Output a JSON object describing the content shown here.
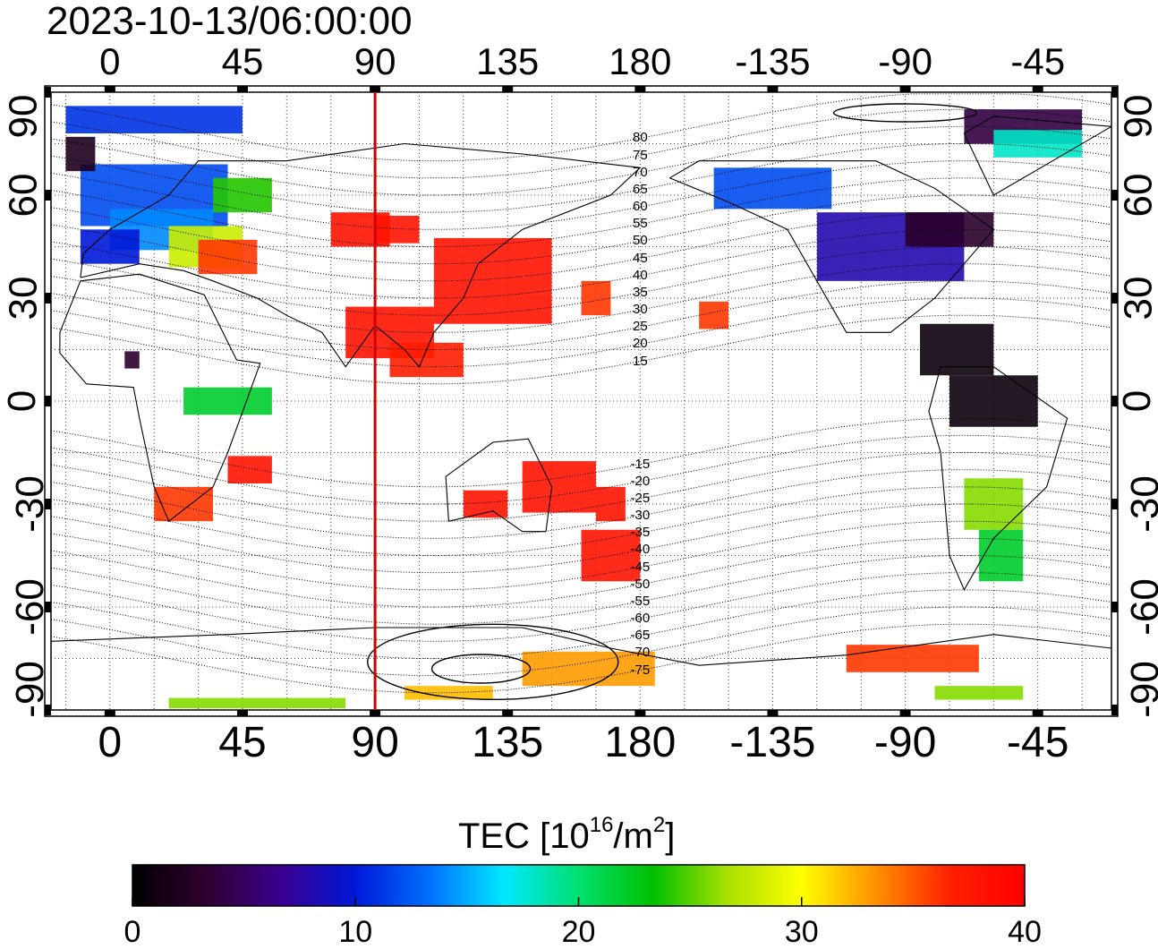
{
  "title": "2023-10-13/06:00:00",
  "x_ticks_top": [
    "0",
    "45",
    "90",
    "135",
    "180",
    "-135",
    "-90",
    "-45"
  ],
  "x_ticks_bottom": [
    "0",
    "45",
    "90",
    "135",
    "180",
    "-135",
    "-90",
    "-45"
  ],
  "y_ticks_left": [
    "90",
    "60",
    "30",
    "0",
    "-30",
    "-60",
    "-90"
  ],
  "y_ticks_right": [
    "90",
    "60",
    "30",
    "0",
    "-30",
    "-60",
    "-90"
  ],
  "mlat_labels": [
    "80",
    "75",
    "70",
    "65",
    "60",
    "55",
    "50",
    "45",
    "40",
    "35",
    "30",
    "25",
    "20",
    "15",
    "-15",
    "-20",
    "-25",
    "-30",
    "-35",
    "-40",
    "-45",
    "-50",
    "-55",
    "-60",
    "-65",
    "-70",
    "-75"
  ],
  "legend": {
    "title_prefix": "TEC  [10",
    "title_exp1": "16",
    "title_mid": "/m",
    "title_exp2": "2",
    "title_suffix": "]",
    "ticks": [
      "0",
      "10",
      "20",
      "30",
      "40"
    ],
    "range": [
      0,
      40
    ],
    "colors": [
      "#000000",
      "#300030",
      "#3a0090",
      "#0018d8",
      "#0070ff",
      "#00e8ff",
      "#00e070",
      "#00c000",
      "#a8e000",
      "#ffff00",
      "#ff9000",
      "#ff2000",
      "#ff0000"
    ]
  },
  "chart_data": {
    "type": "heatmap",
    "quantity": "TEC",
    "units": "10^16/m^2",
    "timestamp": "2023-10-13/06:00:00",
    "lon_range": [
      -20,
      340
    ],
    "lat_range": [
      -90,
      90
    ],
    "marker_longitude": 90,
    "marker_color": "#d00000",
    "color_range": [
      0,
      40
    ]
  }
}
